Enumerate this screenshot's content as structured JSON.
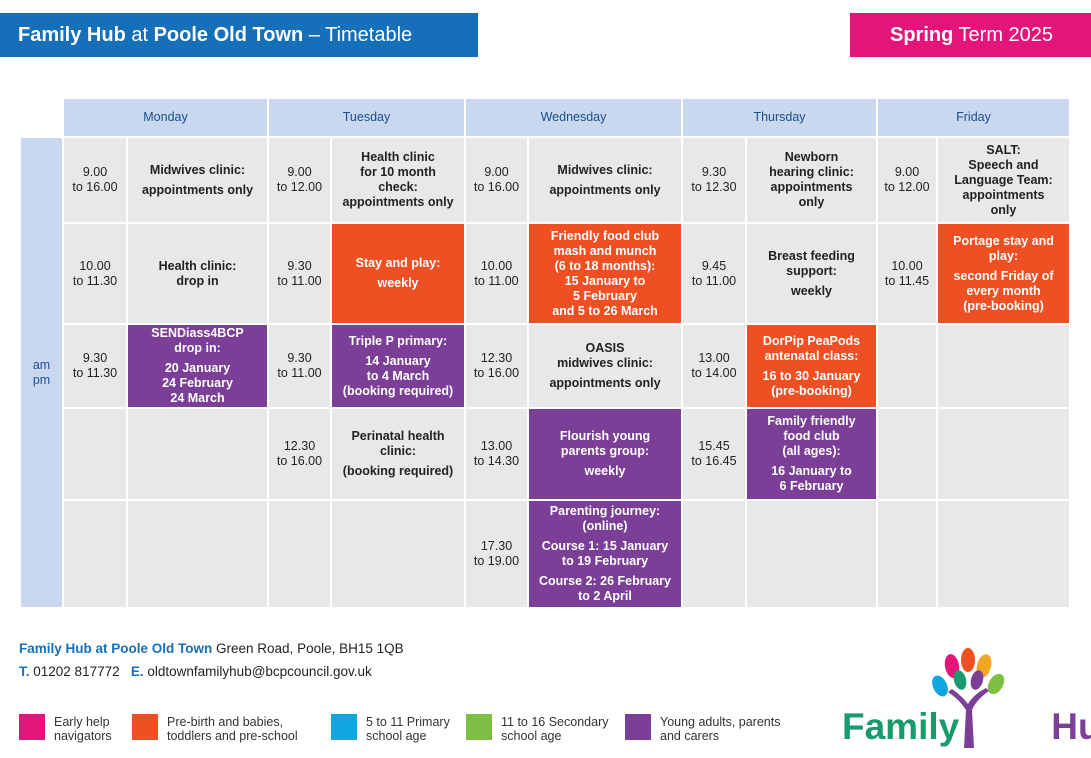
{
  "header": {
    "title_bold1": "Family Hub",
    "title_mid": " at ",
    "title_bold2": "Poole Old Town",
    "title_end": " – Timetable",
    "term_bold": "Spring",
    "term_rest": " Term 2025"
  },
  "days": [
    "Monday",
    "Tuesday",
    "Wednesday",
    "Thursday",
    "Friday"
  ],
  "ampm": [
    "am",
    "pm"
  ],
  "rows": [
    [
      {
        "time": [
          "9.00",
          "to 16.00"
        ],
        "event": [
          "Midwives clinic:",
          "appointments only"
        ],
        "color": "e"
      },
      {
        "time": [
          "9.00",
          "to 12.00"
        ],
        "event": [
          "Health clinic",
          "for 10 month",
          "check:",
          "appointments only"
        ],
        "color": "e"
      },
      {
        "time": [
          "9.00",
          "to 16.00"
        ],
        "event": [
          "Midwives clinic:",
          "appointments only"
        ],
        "color": "e"
      },
      {
        "time": [
          "9.30",
          "to 12.30"
        ],
        "event": [
          "Newborn",
          "hearing clinic:",
          "appointments",
          "only"
        ],
        "color": "e"
      },
      {
        "time": [
          "9.00",
          "to 12.00"
        ],
        "event": [
          "SALT:",
          "Speech and",
          "Language Team:",
          "appointments",
          "only"
        ],
        "color": "e"
      }
    ],
    [
      {
        "time": [
          "10.00",
          "to 11.30"
        ],
        "event": [
          "Health clinic:",
          "drop in"
        ],
        "color": "e"
      },
      {
        "time": [
          "9.30",
          "to 11.00"
        ],
        "event": [
          "Stay and play:",
          "weekly"
        ],
        "color": "o"
      },
      {
        "time": [
          "10.00",
          "to 11.00"
        ],
        "event": [
          "Friendly food club",
          "mash and munch",
          "(6 to 18 months):",
          "15 January to",
          "5 February",
          "and 5 to 26 March"
        ],
        "color": "o"
      },
      {
        "time": [
          "9.45",
          "to 11.00"
        ],
        "event": [
          "Breast feeding",
          "support:",
          "weekly"
        ],
        "color": "e"
      },
      {
        "time": [
          "10.00",
          "to 11.45"
        ],
        "event": [
          "Portage stay and",
          "play:",
          "second Friday of",
          "every month",
          "(pre-booking)"
        ],
        "color": "o"
      }
    ],
    [
      {
        "time": [
          "9.30",
          "to 11.30"
        ],
        "event": [
          "SENDiass4BCP",
          "drop in:",
          "20 January",
          "24 February",
          "24 March"
        ],
        "color": "p"
      },
      {
        "time": [
          "9.30",
          "to 11.00"
        ],
        "event": [
          "Triple P primary:",
          "14 January",
          "to 4 March",
          "(booking required)"
        ],
        "color": "p"
      },
      {
        "time": [
          "12.30",
          "to 16.00"
        ],
        "event": [
          "OASIS",
          "midwives clinic:",
          "appointments only"
        ],
        "color": "e"
      },
      {
        "time": [
          "13.00",
          "to 14.00"
        ],
        "event": [
          "DorPip PeaPods",
          "antenatal class:",
          "16 to 30 January",
          "(pre-booking)"
        ],
        "color": "o"
      },
      {
        "time": [],
        "event": [],
        "color": "e"
      }
    ],
    [
      {
        "time": [],
        "event": [],
        "color": "e"
      },
      {
        "time": [
          "12.30",
          "to 16.00"
        ],
        "event": [
          "Perinatal health",
          "clinic:",
          "(booking required)"
        ],
        "color": "e"
      },
      {
        "time": [
          "13.00",
          "to 14.30"
        ],
        "event": [
          "Flourish young",
          "parents group:",
          "weekly"
        ],
        "color": "p"
      },
      {
        "time": [
          "15.45",
          "to 16.45"
        ],
        "event": [
          "Family friendly",
          "food club",
          "(all ages):",
          "16 January to",
          "6 February"
        ],
        "color": "p"
      },
      {
        "time": [],
        "event": [],
        "color": "e"
      }
    ],
    [
      {
        "time": [],
        "event": [],
        "color": "e"
      },
      {
        "time": [],
        "event": [],
        "color": "e"
      },
      {
        "time": [
          "17.30",
          "to 19.00"
        ],
        "event": [
          "Parenting journey:",
          "(online)",
          "Course 1: 15 January",
          "to 19 February",
          "Course 2:  26 February",
          "to 2 April"
        ],
        "color": "p"
      },
      {
        "time": [],
        "event": [],
        "color": "e"
      },
      {
        "time": [],
        "event": [],
        "color": "e"
      }
    ]
  ],
  "footer": {
    "address_bold": "Family Hub at Poole Old Town",
    "address_rest": " Green Road, Poole, BH15 1QB",
    "phone_label": "T.",
    "phone": " 01202 817772",
    "email_label": "E.",
    "email": " oldtownfamilyhub@bcpcouncil.gov.uk"
  },
  "legend": [
    {
      "label": "Early help\nnavigators",
      "color": "#e5147a"
    },
    {
      "label": "Pre-birth and babies,\ntoddlers and pre-school",
      "color": "#ef5023"
    },
    {
      "label": "5 to 11 Primary\nschool age",
      "color": "#0fa6e0"
    },
    {
      "label": "11 to 16 Secondary\nschool age",
      "color": "#7cbf42"
    },
    {
      "label": "Young adults, parents\nand carers",
      "color": "#7b3f98"
    }
  ],
  "logo": {
    "word1": "Family",
    "word2": "Hub"
  },
  "colors": {
    "blue": "#1570b9",
    "pink": "#e5147a",
    "orange": "#ef5023",
    "purple": "#7b3f98",
    "grey": "#e7e8e8",
    "header_blue": "#c9d8ef"
  }
}
